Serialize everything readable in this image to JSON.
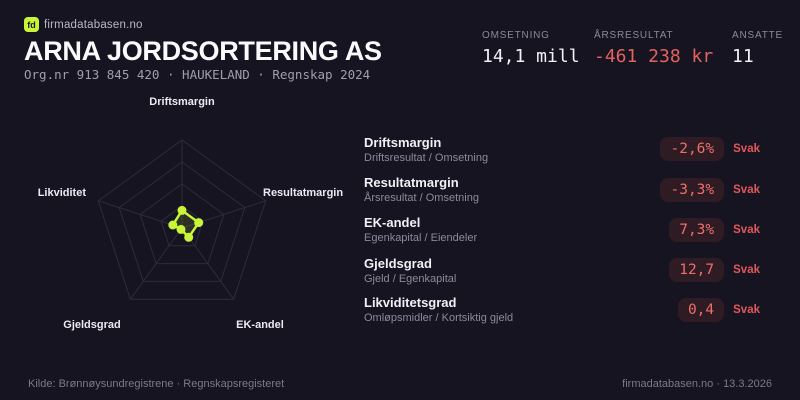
{
  "brand": {
    "logo_text": "fd",
    "site": "firmadatabasen.no"
  },
  "header": {
    "company_name": "ARNA JORDSORTERING AS",
    "org_line": "Org.nr 913 845 420 · HAUKELAND · Regnskap 2024"
  },
  "stats": [
    {
      "label": "OMSETNING",
      "value": "14,1 mill",
      "tone": "normal"
    },
    {
      "label": "ÅRSRESULTAT",
      "value": "-461 238 kr",
      "tone": "negative"
    },
    {
      "label": "ANSATTE",
      "value": "11",
      "tone": "normal"
    }
  ],
  "chart_data": {
    "type": "radar",
    "axes": [
      "Driftsmargin",
      "Resultatmargin",
      "EK-andel",
      "Gjeldsgrad",
      "Likviditet"
    ],
    "values_normalized": [
      0.2,
      0.2,
      0.13,
      0.02,
      0.11
    ],
    "max": 1,
    "rings": 4,
    "grid_on": true,
    "dot_color": "#c8f537",
    "grid_color": "#2e2b3a",
    "fill_color": "rgba(200,245,55,0.13)"
  },
  "metrics": [
    {
      "title": "Driftsmargin",
      "formula": "Driftsresultat / Omsetning",
      "value": "-2,6%",
      "rating": "Svak"
    },
    {
      "title": "Resultatmargin",
      "formula": "Årsresultat / Omsetning",
      "value": "-3,3%",
      "rating": "Svak"
    },
    {
      "title": "EK-andel",
      "formula": "Egenkapital / Eiendeler",
      "value": "7,3%",
      "rating": "Svak"
    },
    {
      "title": "Gjeldsgrad",
      "formula": "Gjeld / Egenkapital",
      "value": "12,7",
      "rating": "Svak"
    },
    {
      "title": "Likviditetsgrad",
      "formula": "Omløpsmidler / Kortsiktig gjeld",
      "value": "0,4",
      "rating": "Svak"
    }
  ],
  "footer": {
    "left": "Kilde: Brønnøysundregistrene · Regnskapsregisteret",
    "right": "firmadatabasen.no · 13.3.2026"
  },
  "colors": {
    "background": "#171421",
    "accent_lime": "#c8f537",
    "negative_red": "#e2625e",
    "pill_background": "#2f1b24"
  }
}
